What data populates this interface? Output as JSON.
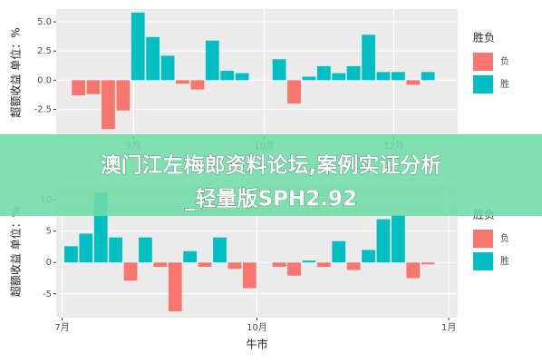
{
  "chart_data": [
    {
      "type": "bar",
      "y_label": "超额收益  单位：%",
      "legend_title": "胜负",
      "x": [
        1.5,
        2.5,
        3.5,
        4.5,
        5.5,
        6.5,
        7.5,
        8.5,
        9.5,
        10.5,
        11.5,
        12.5,
        15,
        16,
        17,
        18,
        19,
        20,
        21,
        22,
        23,
        24,
        25
      ],
      "series": [
        {
          "name": "负",
          "color": "#f8766d",
          "values": [
            -1.3,
            -1.2,
            -4.2,
            -2.6,
            null,
            null,
            null,
            -0.3,
            -0.8,
            null,
            null,
            null,
            null,
            -2.0,
            null,
            null,
            null,
            null,
            null,
            null,
            null,
            -0.4,
            null
          ]
        },
        {
          "name": "胜",
          "color": "#00bfc4",
          "values": [
            null,
            null,
            null,
            null,
            5.8,
            3.7,
            2.1,
            null,
            null,
            3.4,
            0.8,
            0.6,
            1.8,
            null,
            0.3,
            1.2,
            0.6,
            1.2,
            3.9,
            0.7,
            0.7,
            null,
            0.7
          ]
        }
      ],
      "xlim": [
        0,
        27
      ],
      "xticks": [
        {
          "value": 5.2,
          "label": "9月"
        },
        {
          "value": 14,
          "label": "10月"
        },
        {
          "value": 22.7,
          "label": "12月"
        }
      ],
      "ylim": [
        -4.8,
        6.1
      ],
      "yticks": [
        {
          "value": 5,
          "label": "5.0"
        },
        {
          "value": 2.5,
          "label": "2.5"
        },
        {
          "value": 0,
          "label": "0.0"
        },
        {
          "value": -2.5,
          "label": "-2.5"
        }
      ],
      "grid": true
    },
    {
      "type": "bar",
      "y_label": "超额收益  单位：%",
      "x_label": "牛市",
      "legend_title": "胜负",
      "x": [
        1,
        2,
        3,
        4,
        5,
        6,
        7,
        8,
        9,
        10,
        11,
        12,
        13,
        15,
        16,
        17,
        18,
        19,
        20,
        21,
        22,
        23,
        24,
        25
      ],
      "series": [
        {
          "name": "负",
          "color": "#f8766d",
          "values": [
            null,
            null,
            null,
            null,
            -2.9,
            null,
            -0.7,
            -7.8,
            null,
            -0.7,
            null,
            -1.0,
            -4.1,
            -0.7,
            -2.1,
            null,
            -0.7,
            null,
            -1.2,
            null,
            null,
            null,
            -2.5,
            -0.3
          ]
        },
        {
          "name": "胜",
          "color": "#00bfc4",
          "values": [
            2.6,
            4.6,
            11.2,
            4.0,
            null,
            4.0,
            null,
            null,
            1.8,
            null,
            4.0,
            null,
            null,
            null,
            null,
            0.3,
            null,
            3.4,
            null,
            2.0,
            6.9,
            7.6,
            null,
            null
          ]
        }
      ],
      "xlim": [
        0,
        27
      ],
      "xticks": [
        {
          "value": 0.4,
          "label": "7月"
        },
        {
          "value": 13.5,
          "label": "10月"
        },
        {
          "value": 26.4,
          "label": "1月"
        }
      ],
      "ylim": [
        -8.8,
        12.2
      ],
      "yticks": [
        10,
        5,
        0,
        -5
      ],
      "grid": true
    }
  ],
  "banner": {
    "lines": [
      "澳门江左梅郎资料论坛,案例实证分析",
      "_轻量版SPH2.92"
    ]
  }
}
